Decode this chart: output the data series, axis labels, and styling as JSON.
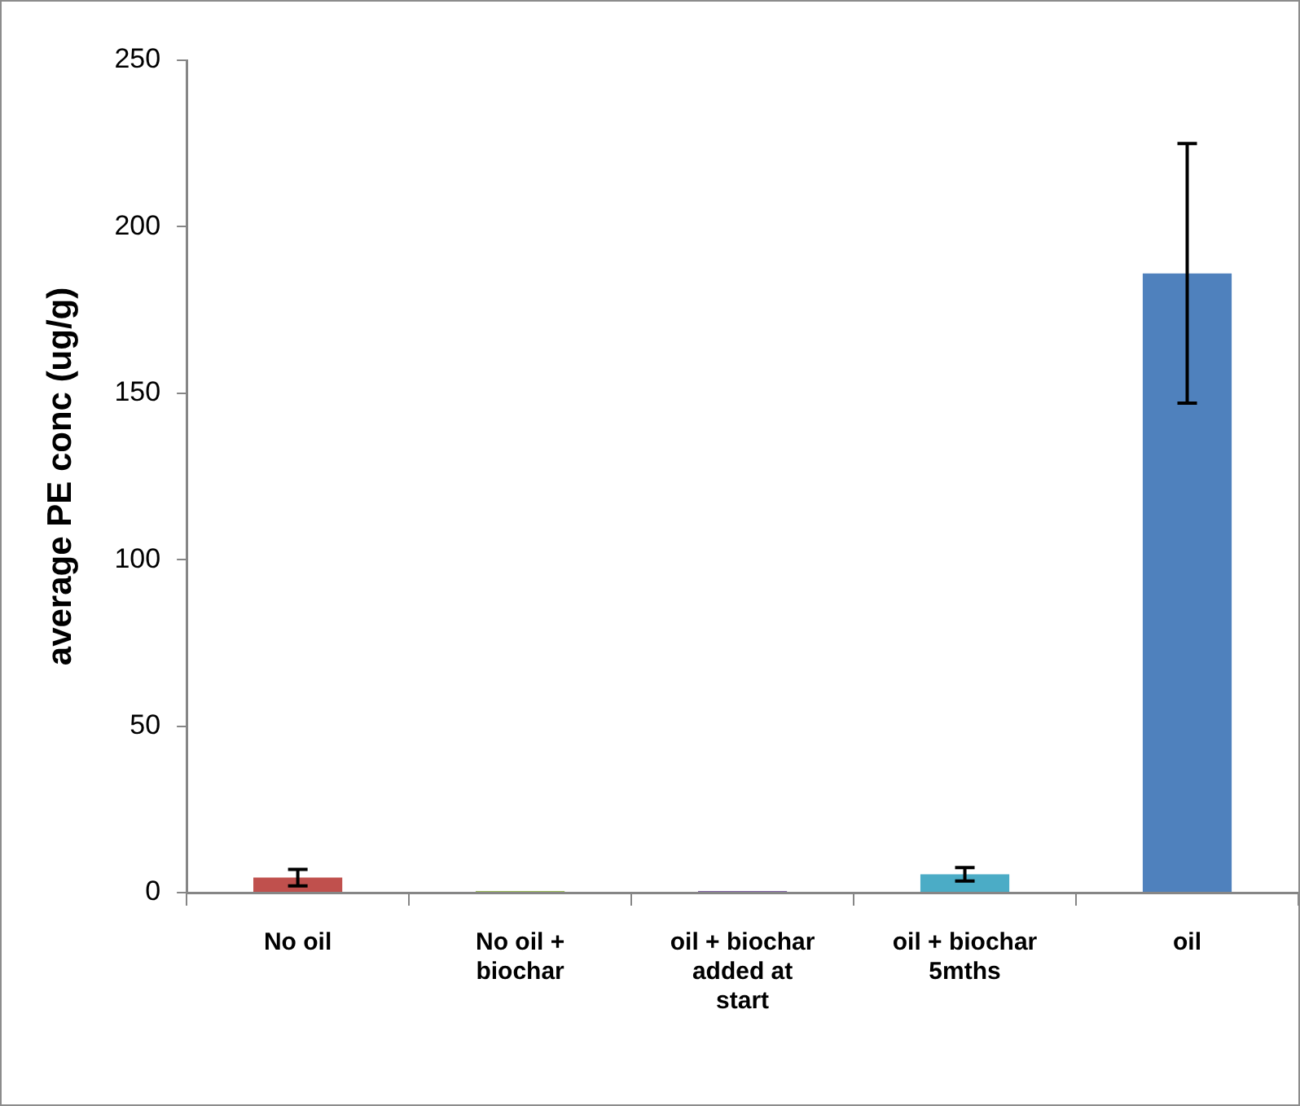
{
  "chart_data": {
    "type": "bar",
    "ylabel": "average PE conc (ug/g)",
    "categories": [
      "No oil",
      "No oil + biochar",
      "oil + biochar added at start",
      "oil + biochar 5mths",
      "oil"
    ],
    "values": [
      4.5,
      0.5,
      0.5,
      5.5,
      186
    ],
    "colors": [
      "#c0504d",
      "#9bbb59",
      "#8064a2",
      "#4bacc6",
      "#4f81bd"
    ],
    "errors": [
      2.5,
      null,
      null,
      2,
      39
    ],
    "ylim": [
      0,
      250
    ],
    "yticks": [
      0,
      50,
      100,
      150,
      200,
      250
    ],
    "grid": false,
    "legend": false
  }
}
